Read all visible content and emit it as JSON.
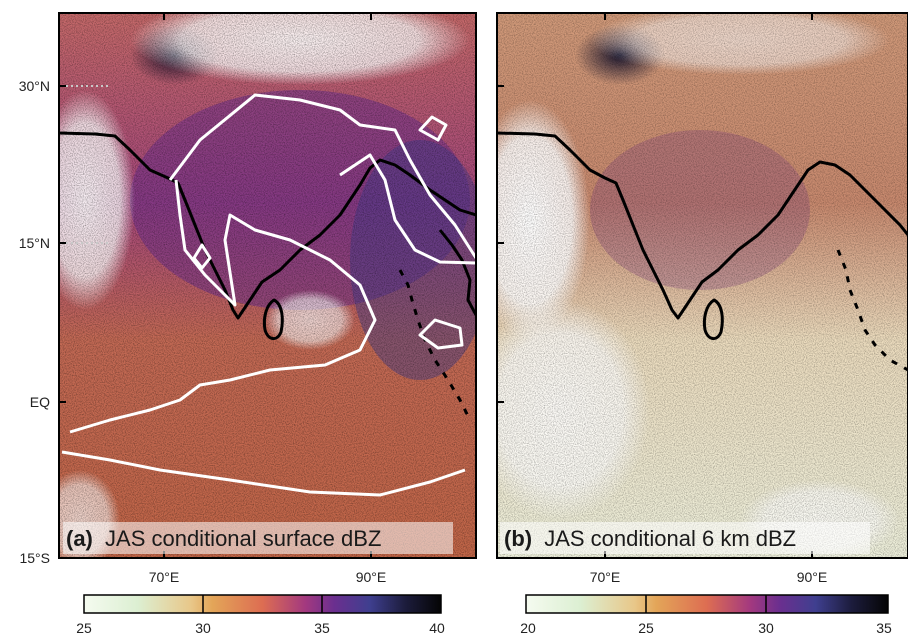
{
  "panels": [
    {
      "id": "a",
      "letter": "(a)",
      "title": "JAS conditional surface dBZ",
      "colorbar_ticks": [
        "25",
        "30",
        "35",
        "40"
      ]
    },
    {
      "id": "b",
      "letter": "(b)",
      "title": "JAS conditional 6 km dBZ",
      "colorbar_ticks": [
        "20",
        "25",
        "30",
        "35"
      ]
    }
  ],
  "lat_labels": [
    "30°N",
    "15°N",
    "EQ",
    "15°S"
  ],
  "lon_labels": [
    "70°E",
    "90°E"
  ],
  "colormap": [
    "#ffffff",
    "#dcefd2",
    "#e8d6a2",
    "#e3a558",
    "#dd6d52",
    "#b8457a",
    "#7c2d8e",
    "#3f3f8f",
    "#1c1c3c",
    "#050505"
  ],
  "contour_color": "#ffffff",
  "coastline_color": "#000000"
}
